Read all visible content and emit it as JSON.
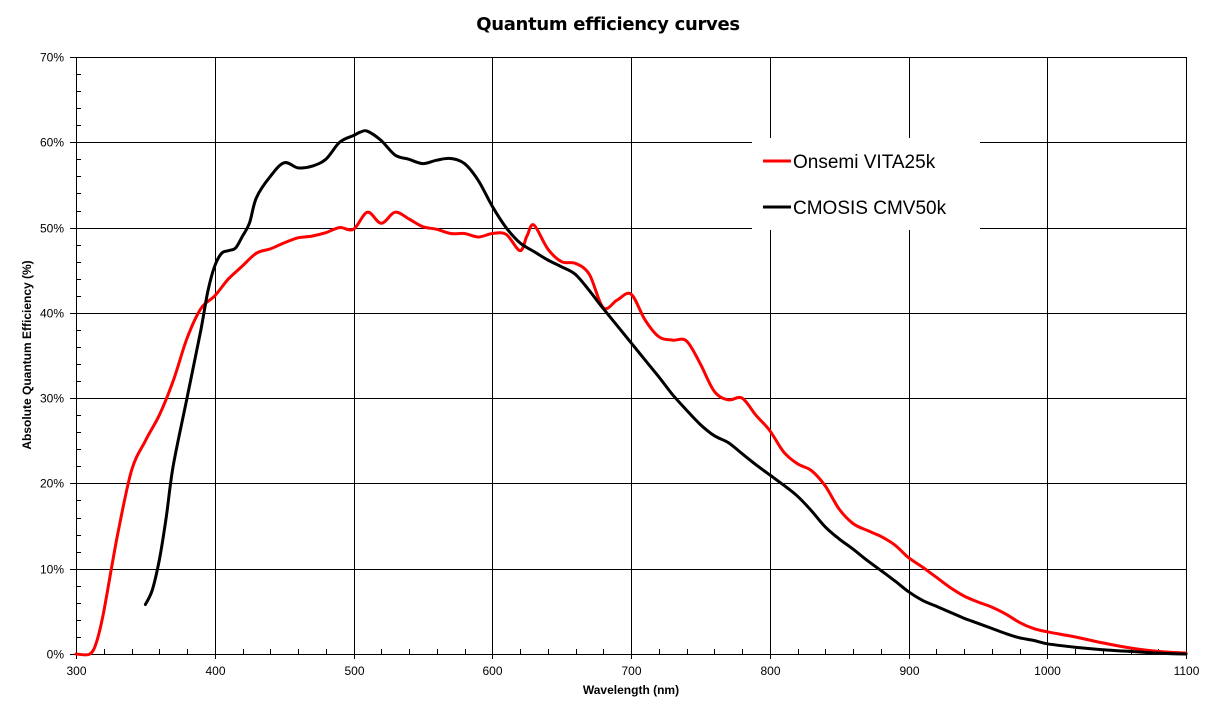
{
  "chart_data": {
    "type": "line",
    "title": "Quantum efficiency curves",
    "xlabel": "Wavelength  (nm)",
    "ylabel": "Absolute Quantum Efficiency  (%)",
    "xlim": [
      300,
      1100
    ],
    "ylim": [
      0,
      70
    ],
    "x_major_step": 100,
    "x_minor_step": 20,
    "y_major_step": 10,
    "y_minor_step": 2,
    "x_ticks": [
      "300",
      "400",
      "500",
      "600",
      "700",
      "800",
      "900",
      "1000",
      "1100"
    ],
    "y_ticks": [
      "0%",
      "10%",
      "20%",
      "30%",
      "40%",
      "50%",
      "60%",
      "70%"
    ],
    "grid": true,
    "legend_position": "top-right",
    "series": [
      {
        "name": "Onsemi VITA25k",
        "color": "#ff0000",
        "points": [
          [
            300,
            0
          ],
          [
            310,
            0
          ],
          [
            315,
            1.5
          ],
          [
            320,
            5
          ],
          [
            330,
            14
          ],
          [
            340,
            21.5
          ],
          [
            350,
            25
          ],
          [
            360,
            28
          ],
          [
            370,
            32
          ],
          [
            380,
            37
          ],
          [
            390,
            40.5
          ],
          [
            400,
            42
          ],
          [
            410,
            44
          ],
          [
            420,
            45.5
          ],
          [
            430,
            47
          ],
          [
            440,
            47.5
          ],
          [
            450,
            48.2
          ],
          [
            460,
            48.8
          ],
          [
            470,
            49
          ],
          [
            480,
            49.4
          ],
          [
            490,
            50
          ],
          [
            500,
            49.8
          ],
          [
            510,
            51.8
          ],
          [
            520,
            50.5
          ],
          [
            530,
            51.8
          ],
          [
            540,
            51
          ],
          [
            550,
            50.1
          ],
          [
            560,
            49.8
          ],
          [
            570,
            49.3
          ],
          [
            580,
            49.3
          ],
          [
            590,
            48.9
          ],
          [
            600,
            49.3
          ],
          [
            610,
            49.2
          ],
          [
            620,
            47.3
          ],
          [
            625,
            49
          ],
          [
            630,
            50.3
          ],
          [
            640,
            47.5
          ],
          [
            650,
            46
          ],
          [
            660,
            45.8
          ],
          [
            670,
            44.5
          ],
          [
            680,
            40.6
          ],
          [
            690,
            41.5
          ],
          [
            700,
            42.2
          ],
          [
            710,
            39.2
          ],
          [
            720,
            37.2
          ],
          [
            730,
            36.8
          ],
          [
            740,
            36.7
          ],
          [
            750,
            34
          ],
          [
            760,
            30.8
          ],
          [
            770,
            29.8
          ],
          [
            780,
            30
          ],
          [
            790,
            28
          ],
          [
            800,
            26.2
          ],
          [
            810,
            23.7
          ],
          [
            820,
            22.3
          ],
          [
            830,
            21.5
          ],
          [
            840,
            19.7
          ],
          [
            850,
            17
          ],
          [
            860,
            15.3
          ],
          [
            870,
            14.5
          ],
          [
            880,
            13.8
          ],
          [
            890,
            12.8
          ],
          [
            900,
            11.3
          ],
          [
            910,
            10.2
          ],
          [
            920,
            9
          ],
          [
            930,
            7.8
          ],
          [
            940,
            6.8
          ],
          [
            950,
            6.1
          ],
          [
            960,
            5.5
          ],
          [
            970,
            4.7
          ],
          [
            980,
            3.7
          ],
          [
            990,
            3
          ],
          [
            1000,
            2.6
          ],
          [
            1020,
            2
          ],
          [
            1040,
            1.3
          ],
          [
            1060,
            0.7
          ],
          [
            1080,
            0.3
          ],
          [
            1100,
            0.1
          ]
        ]
      },
      {
        "name": "CMOSIS CMV50k",
        "color": "#000000",
        "points": [
          [
            350,
            5.8
          ],
          [
            355,
            7.5
          ],
          [
            360,
            11
          ],
          [
            365,
            16
          ],
          [
            370,
            22
          ],
          [
            380,
            30
          ],
          [
            390,
            38
          ],
          [
            395,
            42.5
          ],
          [
            400,
            45.5
          ],
          [
            405,
            47
          ],
          [
            410,
            47.3
          ],
          [
            415,
            47.6
          ],
          [
            420,
            49
          ],
          [
            425,
            50.5
          ],
          [
            430,
            53.5
          ],
          [
            440,
            56
          ],
          [
            450,
            57.6
          ],
          [
            460,
            57
          ],
          [
            470,
            57.2
          ],
          [
            480,
            58
          ],
          [
            490,
            60
          ],
          [
            500,
            60.8
          ],
          [
            505,
            61.2
          ],
          [
            510,
            61.3
          ],
          [
            520,
            60.2
          ],
          [
            530,
            58.5
          ],
          [
            540,
            58
          ],
          [
            550,
            57.5
          ],
          [
            560,
            57.9
          ],
          [
            570,
            58.1
          ],
          [
            580,
            57.5
          ],
          [
            590,
            55.5
          ],
          [
            600,
            52.5
          ],
          [
            610,
            50
          ],
          [
            620,
            48.2
          ],
          [
            630,
            47.2
          ],
          [
            640,
            46.2
          ],
          [
            650,
            45.4
          ],
          [
            660,
            44.5
          ],
          [
            670,
            42.6
          ],
          [
            680,
            40.5
          ],
          [
            690,
            38.5
          ],
          [
            700,
            36.5
          ],
          [
            710,
            34.5
          ],
          [
            720,
            32.5
          ],
          [
            730,
            30.4
          ],
          [
            740,
            28.6
          ],
          [
            750,
            26.9
          ],
          [
            760,
            25.6
          ],
          [
            770,
            24.8
          ],
          [
            780,
            23.5
          ],
          [
            790,
            22.2
          ],
          [
            800,
            21
          ],
          [
            810,
            19.8
          ],
          [
            820,
            18.5
          ],
          [
            830,
            16.8
          ],
          [
            840,
            14.9
          ],
          [
            850,
            13.5
          ],
          [
            860,
            12.3
          ],
          [
            870,
            11
          ],
          [
            880,
            9.8
          ],
          [
            890,
            8.6
          ],
          [
            900,
            7.3
          ],
          [
            910,
            6.3
          ],
          [
            920,
            5.6
          ],
          [
            930,
            4.9
          ],
          [
            940,
            4.2
          ],
          [
            950,
            3.6
          ],
          [
            960,
            3
          ],
          [
            970,
            2.4
          ],
          [
            980,
            1.9
          ],
          [
            990,
            1.6
          ],
          [
            1000,
            1.2
          ],
          [
            1020,
            0.8
          ],
          [
            1040,
            0.5
          ],
          [
            1060,
            0.3
          ],
          [
            1080,
            0.1
          ],
          [
            1100,
            0
          ]
        ]
      }
    ]
  }
}
